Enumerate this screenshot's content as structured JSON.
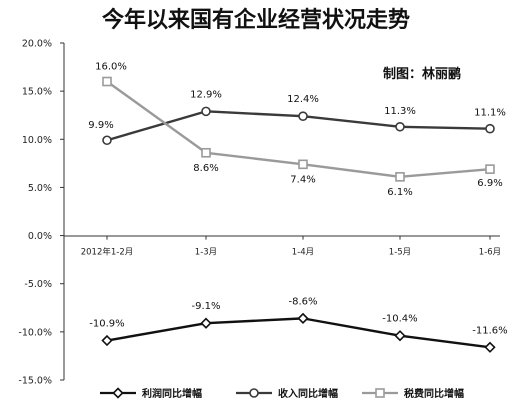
{
  "chart_data": {
    "type": "line",
    "title": "今年以来国有企业经营状况走势",
    "credit": "制图：林丽鹂",
    "categories": [
      "2012年1-2月",
      "1-3月",
      "1-4月",
      "1-5月",
      "1-6月"
    ],
    "ylim": [
      -15,
      20
    ],
    "yticks": [
      "20.0%",
      "15.0%",
      "10.0%",
      "5.0%",
      "0.0%",
      "-5.0%",
      "-10.0%",
      "-15.0%"
    ],
    "ytick_values": [
      20,
      15,
      10,
      5,
      0,
      -5,
      -10,
      -15
    ],
    "grid": false,
    "legend_position": "bottom",
    "series": [
      {
        "name": "利润同比增幅",
        "values": [
          -10.9,
          -9.1,
          -8.6,
          -10.4,
          -11.6
        ],
        "labels": [
          "-10.9%",
          "-9.1%",
          "-8.6%",
          "-10.4%",
          "-11.6%"
        ],
        "color": "#111111",
        "marker": "diamond"
      },
      {
        "name": "收入同比增幅",
        "values": [
          9.9,
          12.9,
          12.4,
          11.3,
          11.1
        ],
        "labels": [
          "9.9%",
          "12.9%",
          "12.4%",
          "11.3%",
          "11.1%"
        ],
        "color": "#3a3a3a",
        "marker": "circle"
      },
      {
        "name": "税费同比增幅",
        "values": [
          16.0,
          8.6,
          7.4,
          6.1,
          6.9
        ],
        "labels": [
          "16.0%",
          "8.6%",
          "7.4%",
          "6.1%",
          "6.9%"
        ],
        "color": "#9a9a9a",
        "marker": "square"
      }
    ]
  }
}
